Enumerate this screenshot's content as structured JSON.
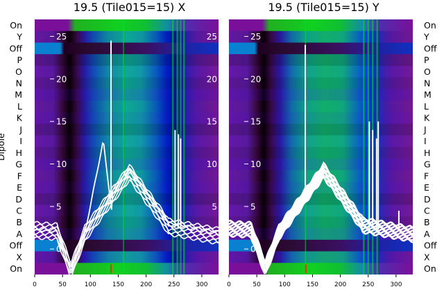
{
  "chart_data": [
    {
      "type": "heatmap",
      "title": "19.5 (Tile015=15) X",
      "ylabel": "Dipole",
      "x_ticks": [
        "0",
        "50",
        "100",
        "150",
        "200",
        "250",
        "300"
      ],
      "overlay_ticks": [
        "25",
        "20",
        "15",
        "10",
        "5",
        "0"
      ],
      "overlay_ticks_right": [
        "25",
        "20",
        "15",
        "10",
        "5"
      ],
      "xlim": [
        0,
        330
      ],
      "overlay_ylim": [
        -3,
        27
      ],
      "rows": [
        "On",
        "Y",
        "Off",
        "P",
        "O",
        "N",
        "M",
        "L",
        "K",
        "J",
        "I",
        "H",
        "G",
        "F",
        "E",
        "D",
        "C",
        "B",
        "A",
        "Off",
        "X",
        "On"
      ],
      "overlay_series": "white response curves"
    },
    {
      "type": "heatmap",
      "title": "19.5 (Tile015=15) Y",
      "x_ticks": [
        "0",
        "50",
        "100",
        "150",
        "200",
        "250",
        "300"
      ],
      "overlay_ticks": [
        "25",
        "20",
        "15",
        "10",
        "5",
        "0"
      ],
      "xlim": [
        0,
        330
      ],
      "overlay_ylim": [
        -3,
        27
      ],
      "rows": [
        "On",
        "Y",
        "Off",
        "P",
        "O",
        "N",
        "M",
        "L",
        "K",
        "J",
        "I",
        "H",
        "G",
        "F",
        "E",
        "D",
        "C",
        "B",
        "A",
        "Off",
        "X",
        "On"
      ]
    }
  ],
  "colors": {
    "purple": "#7a0f9a",
    "violet": "#5a1aa0",
    "dark": "#1a0018",
    "blue": "#0022cc",
    "teal": "#0f9aa0",
    "green": "#00cc22",
    "cyan": "#0a8ad8",
    "curve": "#ffffff"
  }
}
